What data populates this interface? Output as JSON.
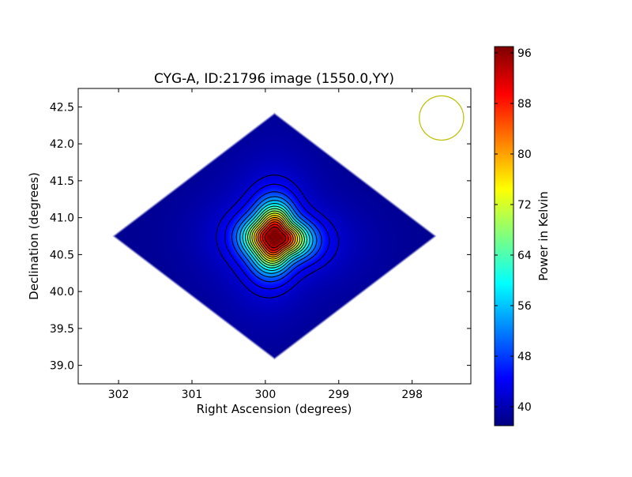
{
  "chart_data": {
    "type": "heatmap",
    "title": "CYG-A, ID:21796 image (1550.0,YY)",
    "xlabel": "Right Ascension (degrees)",
    "ylabel": "Declination (degrees)",
    "xlim": [
      302.55,
      297.2
    ],
    "ylim": [
      38.75,
      42.75
    ],
    "x_ticks": [
      "302",
      "301",
      "300",
      "299",
      "298"
    ],
    "x_tick_values": [
      302,
      301,
      300,
      299,
      298
    ],
    "y_ticks": [
      "39.0",
      "39.5",
      "40.0",
      "40.5",
      "41.0",
      "41.5",
      "42.0",
      "42.5"
    ],
    "y_tick_values": [
      39.0,
      39.5,
      40.0,
      40.5,
      41.0,
      41.5,
      42.0,
      42.5
    ],
    "colorbar": {
      "label": "Power in Kelvin",
      "range": [
        37,
        97
      ],
      "ticks": [
        "40",
        "48",
        "56",
        "64",
        "72",
        "80",
        "88",
        "96"
      ],
      "tick_values": [
        40,
        48,
        56,
        64,
        72,
        80,
        88,
        96
      ],
      "colormap": "jet"
    },
    "source": {
      "ra": 299.87,
      "dec": 40.73,
      "peak": 96,
      "background": 40
    },
    "beam_circle": {
      "ra": 297.6,
      "dec": 42.35,
      "radius_deg": 0.3,
      "color": "#bfbf00"
    },
    "grid": false
  }
}
